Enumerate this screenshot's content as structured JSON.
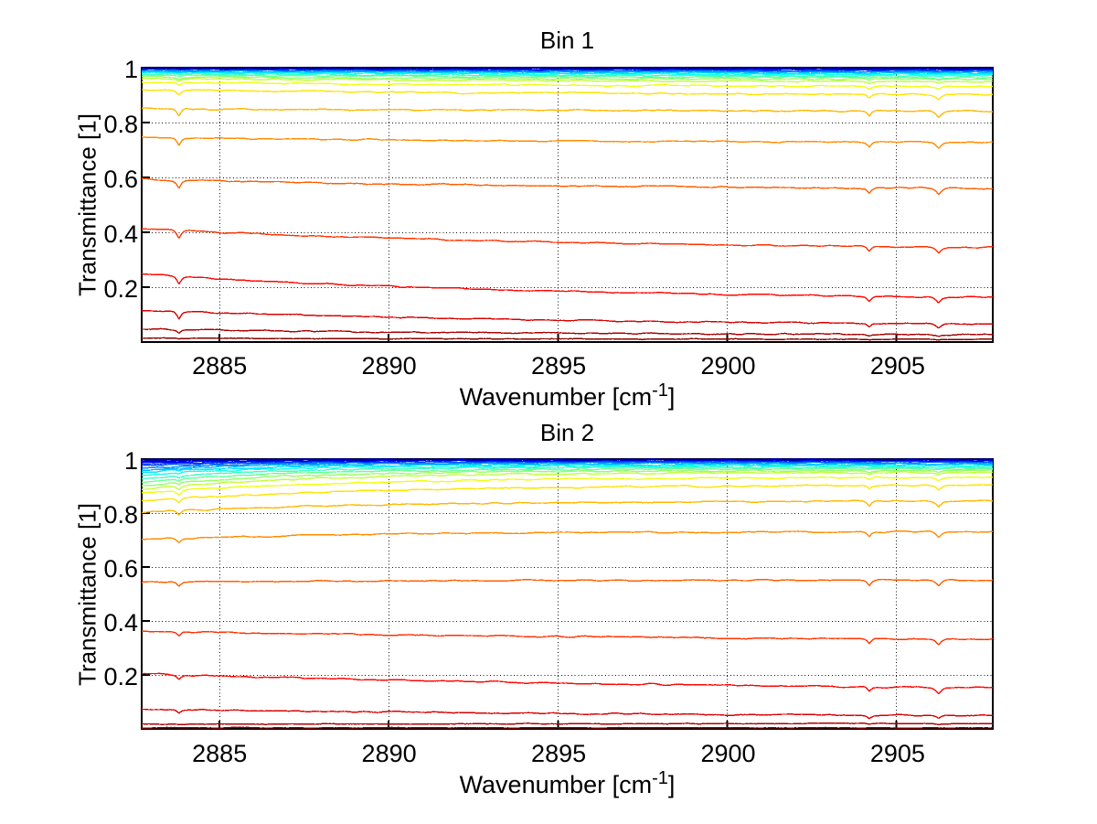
{
  "figure": {
    "background": "#ffffff",
    "text_color": "#000000"
  },
  "chart_data": [
    {
      "type": "line",
      "title": "Bin 1",
      "xlabel_main": "Wavenumber [cm",
      "xlabel_sup": "-1",
      "xlabel_end": "]",
      "ylabel": "Transmittance [1]",
      "xlim": [
        2882.7,
        2907.85
      ],
      "ylim": [
        0,
        1
      ],
      "xticks": [
        2885,
        2890,
        2895,
        2900,
        2905
      ],
      "xtick_labels": [
        "2885",
        "2890",
        "2895",
        "2900",
        "2905"
      ],
      "yticks": [
        1,
        0.8,
        0.6,
        0.4,
        0.2
      ],
      "ytick_labels": [
        "1",
        "0.8",
        "0.6",
        "0.4",
        "0.2"
      ],
      "grid": true,
      "grid_style": "dotted",
      "colormap": "jet",
      "n_lines": 24,
      "absorption_dips": [
        {
          "center": 2883.8,
          "sigma": 0.08,
          "strength": 1.2
        },
        {
          "center": 2904.2,
          "sigma": 0.08,
          "strength": 0.8
        },
        {
          "center": 2906.25,
          "sigma": 0.105,
          "strength": 0.95
        }
      ],
      "series": [
        {
          "start": 1.0,
          "end": 0.9998,
          "tau": 12,
          "color": "#000080"
        },
        {
          "start": 0.9989,
          "end": 0.9981,
          "tau": 12,
          "color": "#0000AC"
        },
        {
          "start": 0.9977,
          "end": 0.9963,
          "tau": 12,
          "color": "#0000D8"
        },
        {
          "start": 0.9963,
          "end": 0.9944,
          "tau": 12,
          "color": "#0006FF"
        },
        {
          "start": 0.9947,
          "end": 0.9922,
          "tau": 12,
          "color": "#0032FF"
        },
        {
          "start": 0.9929,
          "end": 0.9897,
          "tau": 12,
          "color": "#005EFF"
        },
        {
          "start": 0.9908,
          "end": 0.9868,
          "tau": 12,
          "color": "#008BFF"
        },
        {
          "start": 0.9883,
          "end": 0.9835,
          "tau": 12,
          "color": "#00B7FF"
        },
        {
          "start": 0.9854,
          "end": 0.9797,
          "tau": 12,
          "color": "#00E3FF"
        },
        {
          "start": 0.982,
          "end": 0.9753,
          "tau": 12,
          "color": "#11FFEE"
        },
        {
          "start": 0.978,
          "end": 0.9702,
          "tau": 12,
          "color": "#3DFFC2"
        },
        {
          "start": 0.9733,
          "end": 0.9643,
          "tau": 12,
          "color": "#69FF96"
        },
        {
          "start": 0.9678,
          "end": 0.9575,
          "tau": 12,
          "color": "#96FF69"
        },
        {
          "start": 0.9612,
          "end": 0.9497,
          "tau": 12,
          "color": "#C2FF3D"
        },
        {
          "start": 0.948,
          "end": 0.932,
          "tau": 12,
          "color": "#EEFF11"
        },
        {
          "start": 0.92,
          "end": 0.902,
          "tau": 12,
          "color": "#FFE300"
        },
        {
          "start": 0.851,
          "end": 0.842,
          "tau": 12,
          "color": "#FFB700"
        },
        {
          "start": 0.747,
          "end": 0.728,
          "tau": 12,
          "color": "#FF8B00"
        },
        {
          "start": 0.593,
          "end": 0.56,
          "tau": 12,
          "color": "#FF5E00"
        },
        {
          "start": 0.414,
          "end": 0.345,
          "tau": 12,
          "color": "#FF3200"
        },
        {
          "start": 0.247,
          "end": 0.163,
          "tau": 12,
          "color": "#FF0600"
        },
        {
          "start": 0.117,
          "end": 0.066,
          "tau": 12,
          "color": "#D80000"
        },
        {
          "start": 0.047,
          "end": 0.027,
          "tau": 12,
          "color": "#AC0000"
        },
        {
          "start": 0.0145,
          "end": 0.01,
          "tau": 12,
          "color": "#800000"
        }
      ]
    },
    {
      "type": "line",
      "title": "Bin 2",
      "xlabel_main": "Wavenumber [cm",
      "xlabel_sup": "-1",
      "xlabel_end": "]",
      "ylabel": "Transmittance [1]",
      "xlim": [
        2882.7,
        2907.85
      ],
      "ylim": [
        0,
        1
      ],
      "xticks": [
        2885,
        2890,
        2895,
        2900,
        2905
      ],
      "xtick_labels": [
        "2885",
        "2890",
        "2895",
        "2900",
        "2905"
      ],
      "yticks": [
        1,
        0.8,
        0.6,
        0.4,
        0.2
      ],
      "ytick_labels": [
        "1",
        "0.8",
        "0.6",
        "0.4",
        "0.2"
      ],
      "grid": true,
      "grid_style": "dotted",
      "colormap": "jet",
      "n_lines": 24,
      "absorption_dips": [
        {
          "center": 2883.8,
          "sigma": 0.08,
          "strength": 0.7
        },
        {
          "center": 2904.2,
          "sigma": 0.08,
          "strength": 0.8
        },
        {
          "center": 2906.25,
          "sigma": 0.105,
          "strength": 0.95
        }
      ],
      "series": [
        {
          "start": 0.999,
          "end": 0.9999,
          "tau": 3.2,
          "color": "#000080"
        },
        {
          "start": 0.9965,
          "end": 0.9985,
          "tau": 3.2,
          "color": "#0000AC"
        },
        {
          "start": 0.9925,
          "end": 0.9968,
          "tau": 3.2,
          "color": "#0000D8"
        },
        {
          "start": 0.988,
          "end": 0.9948,
          "tau": 3.2,
          "color": "#0006FF"
        },
        {
          "start": 0.9825,
          "end": 0.9925,
          "tau": 3.2,
          "color": "#0032FF"
        },
        {
          "start": 0.976,
          "end": 0.9898,
          "tau": 3.2,
          "color": "#005EFF"
        },
        {
          "start": 0.9685,
          "end": 0.9868,
          "tau": 3.2,
          "color": "#008BFF"
        },
        {
          "start": 0.96,
          "end": 0.9833,
          "tau": 3.2,
          "color": "#00B7FF"
        },
        {
          "start": 0.9505,
          "end": 0.9793,
          "tau": 3.2,
          "color": "#00E3FF"
        },
        {
          "start": 0.94,
          "end": 0.9748,
          "tau": 3.5,
          "color": "#11FFEE"
        },
        {
          "start": 0.9285,
          "end": 0.9698,
          "tau": 3.8,
          "color": "#3DFFC2"
        },
        {
          "start": 0.9155,
          "end": 0.9641,
          "tau": 4.2,
          "color": "#69FF96"
        },
        {
          "start": 0.901,
          "end": 0.9577,
          "tau": 4.6,
          "color": "#96FF69"
        },
        {
          "start": 0.888,
          "end": 0.9506,
          "tau": 5.0,
          "color": "#C2FF3D"
        },
        {
          "start": 0.875,
          "end": 0.932,
          "tau": 6.0,
          "color": "#EEFF11"
        },
        {
          "start": 0.845,
          "end": 0.903,
          "tau": 7.0,
          "color": "#FFE300"
        },
        {
          "start": 0.803,
          "end": 0.845,
          "tau": 7.0,
          "color": "#FFB700"
        },
        {
          "start": 0.702,
          "end": 0.731,
          "tau": 7.0,
          "color": "#FF8B00"
        },
        {
          "start": 0.543,
          "end": 0.552,
          "tau": 7.0,
          "color": "#FF5E00"
        },
        {
          "start": 0.362,
          "end": 0.332,
          "tau": 18,
          "color": "#FF3200"
        },
        {
          "start": 0.204,
          "end": 0.152,
          "tau": 18,
          "color": "#FF0600"
        },
        {
          "start": 0.073,
          "end": 0.049,
          "tau": 18,
          "color": "#D80000"
        },
        {
          "start": 0.017,
          "end": 0.02,
          "tau": 18,
          "color": "#AC0000"
        },
        {
          "start": 0.004,
          "end": 0.004,
          "tau": 18,
          "color": "#800000"
        }
      ]
    }
  ]
}
